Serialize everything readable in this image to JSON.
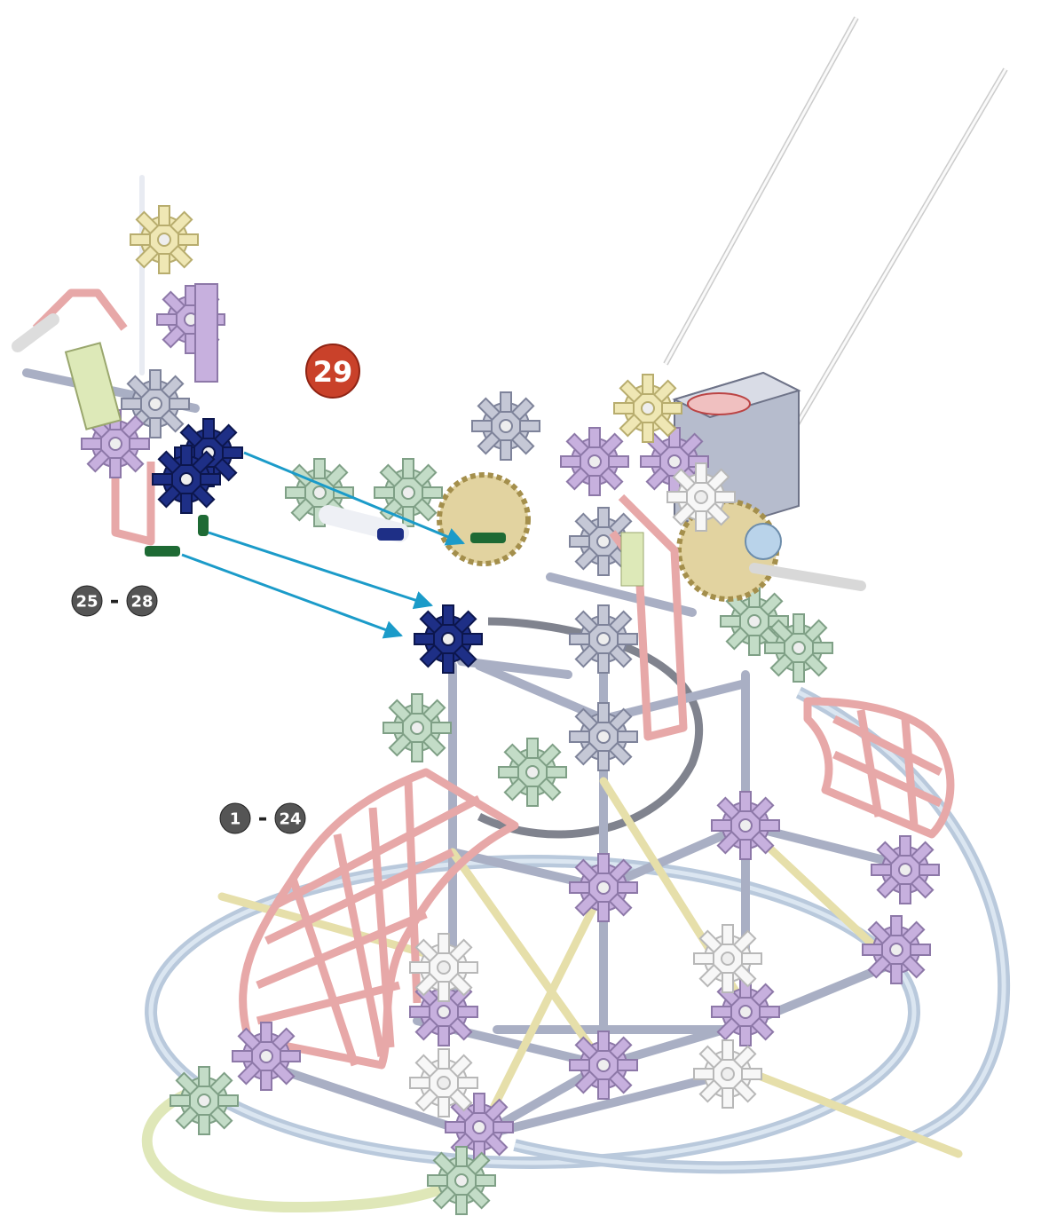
{
  "step": {
    "number": "29"
  },
  "previous_steps": [
    {
      "from": "25",
      "separator": "-",
      "to": "28"
    },
    {
      "from": "1",
      "separator": "-",
      "to": "24"
    }
  ]
}
